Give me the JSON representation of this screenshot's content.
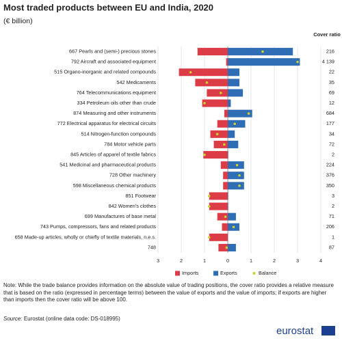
{
  "chart_data": {
    "type": "diverging-bar",
    "title": "Most traded products between EU and India, 2020",
    "subtitle": "(€ billion)",
    "categories": [
      "667 Pearls and (semi-) precious stones",
      "792 Aircraft and associated equipment",
      "515 Organo-inorganic and related compounds",
      "542 Medicaments",
      "764 Telecommunications equipment",
      "334 Petroleum oils other than crude",
      "874 Measuring and other instruments",
      "772 Electrical apparatus for electrical circuits",
      "514 Nitrogen-function compounds",
      "784 Motor vehicle parts",
      "845 Articles of apparel of textile fabrics",
      "541 Medicinal and pharmaceutical products",
      "728 Other machinery",
      "598 Miscellaneous chemical products",
      "851 Footwear",
      "842 Women's clothes",
      "699 Manufactures of base metal",
      "743 Pumps, compressors, fans and related products",
      "658 Made-up articles, wholly or chiefly of textile materials, n.e.s.",
      "748"
    ],
    "series": [
      {
        "name": "Imports",
        "color": "#dc3c46",
        "values": [
          -1.3,
          -0.07,
          -2.1,
          -1.4,
          -0.9,
          -1.1,
          -0.15,
          -0.45,
          -0.75,
          -0.6,
          -1.05,
          -0.3,
          -0.2,
          -0.2,
          -0.8,
          -0.8,
          -0.45,
          -0.25,
          -0.8,
          -0.4
        ]
      },
      {
        "name": "Exports",
        "color": "#2f6db5",
        "values": [
          2.8,
          3.1,
          0.5,
          0.5,
          0.65,
          0.13,
          1.05,
          0.75,
          0.3,
          0.45,
          0.02,
          0.7,
          0.7,
          0.7,
          0.02,
          0.02,
          0.35,
          0.5,
          0.01,
          0.35
        ]
      },
      {
        "name": "Balance",
        "color": "#c9d22e",
        "values": [
          1.5,
          3.0,
          -1.6,
          -0.9,
          -0.3,
          -1.0,
          0.9,
          0.3,
          -0.45,
          -0.15,
          -1.0,
          0.4,
          0.5,
          0.5,
          -0.8,
          -0.8,
          -0.1,
          0.25,
          -0.8,
          -0.05
        ]
      }
    ],
    "cover_ratio": {
      "title": "Cover ratio",
      "values": [
        "216",
        "4 139",
        "22",
        "35",
        "69",
        "12",
        "684",
        "177",
        "34",
        "72",
        "2",
        "224",
        "376",
        "350",
        "3",
        "2",
        "71",
        "206",
        "1",
        "87"
      ]
    },
    "xlim": [
      -3,
      4
    ],
    "xticks": [
      {
        "value": -3,
        "label": "3"
      },
      {
        "value": -2,
        "label": "2"
      },
      {
        "value": -1,
        "label": "1"
      },
      0,
      1,
      2,
      3,
      4
    ],
    "grid": true,
    "note": "Note: While the trade balance provides information on the absolute value of trading positions, the cover ratio provides a relative measure that is based on the ratio (expressed in percentage terms) between the value of exports and the value of imports; if exports are higher than imports then the cover ratio will be above 100.",
    "source_label": "Source:",
    "source": "Eurostat (online data code: DS-018995)",
    "logo": "eurostat"
  }
}
